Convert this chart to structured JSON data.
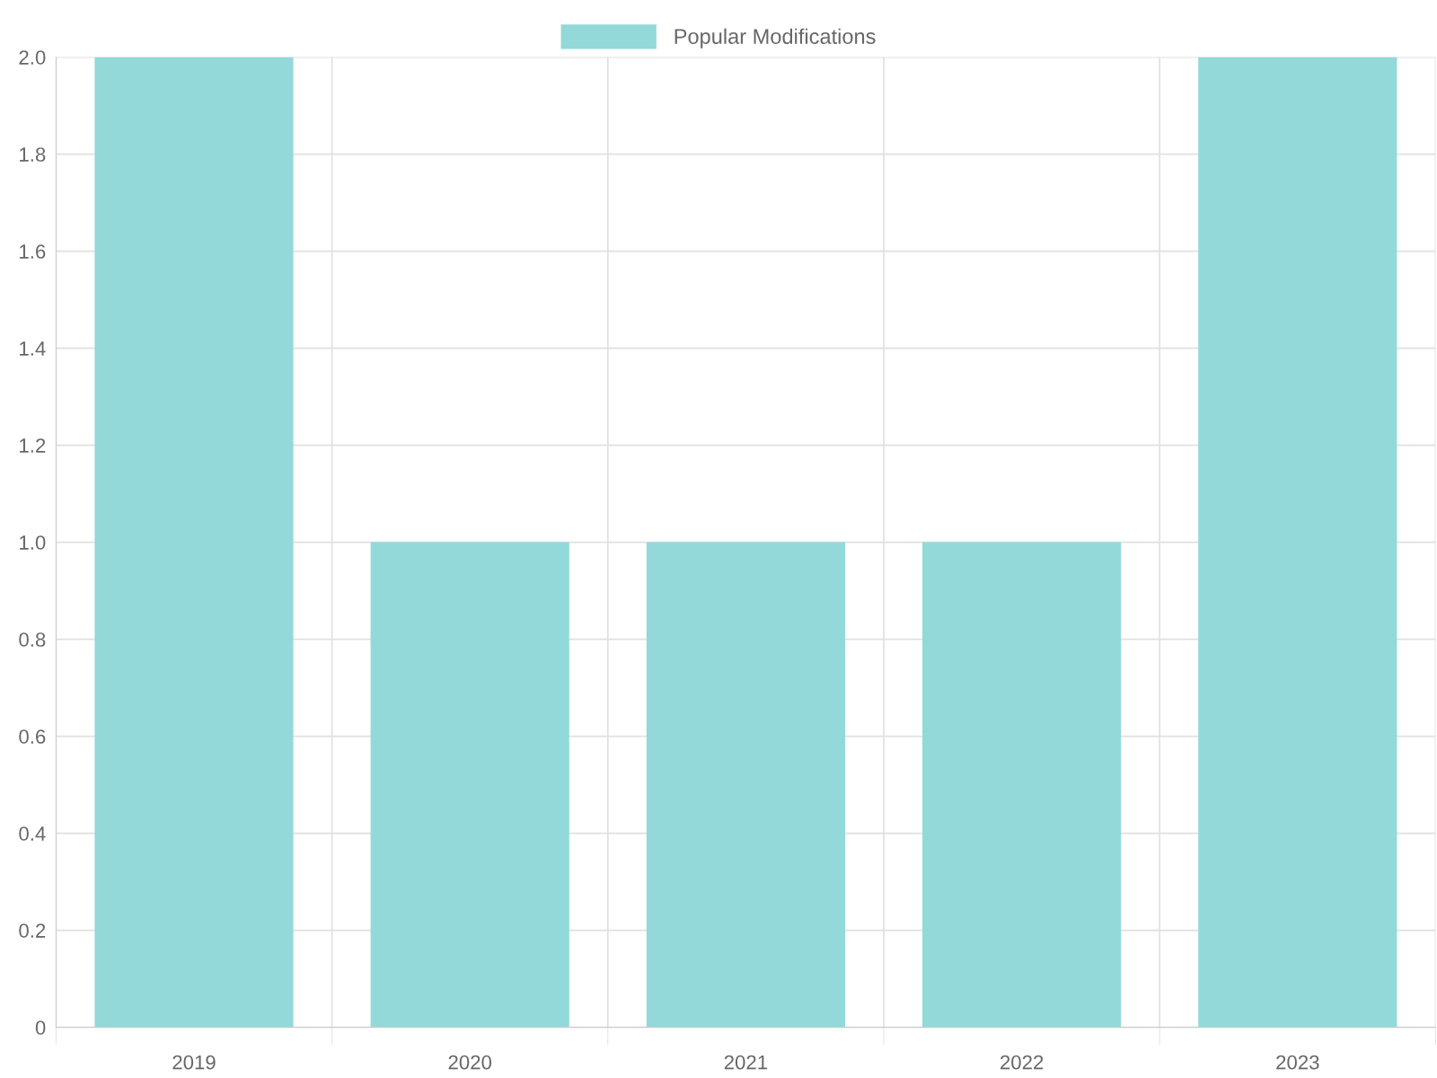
{
  "chart_data": {
    "type": "bar",
    "categories": [
      "2019",
      "2020",
      "2021",
      "2022",
      "2023"
    ],
    "series": [
      {
        "name": "Popular Modifications",
        "color": "#93d9d9",
        "values": [
          2,
          1,
          1,
          1,
          2
        ]
      }
    ],
    "ylim": [
      0,
      2.0
    ],
    "yticks": [
      0,
      {
        "value": 0.2,
        "label": "0.2"
      },
      {
        "value": 0.4,
        "label": "0.4"
      },
      {
        "value": 0.6,
        "label": "0.6"
      },
      {
        "value": 0.8,
        "label": "0.8"
      },
      {
        "value": 1.0,
        "label": "1.0"
      },
      {
        "value": 1.2,
        "label": "1.2"
      },
      {
        "value": 1.4,
        "label": "1.4"
      },
      {
        "value": 1.6,
        "label": "1.6"
      },
      {
        "value": 1.8,
        "label": "1.8"
      },
      {
        "value": 2.0,
        "label": "2.0"
      }
    ],
    "grid": true,
    "legend": "top"
  }
}
